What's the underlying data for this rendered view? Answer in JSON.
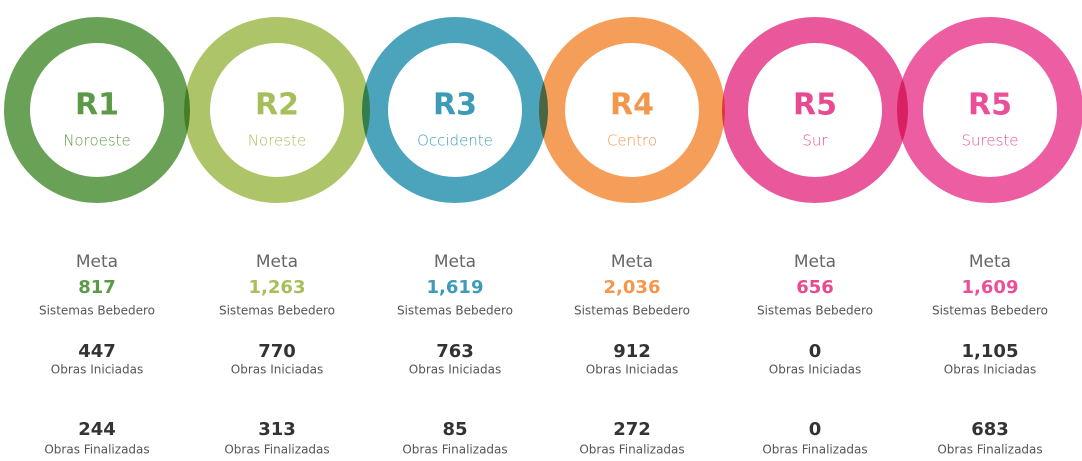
{
  "regions": [
    {
      "code": "R1",
      "name": "Noroeste",
      "goal_label": "Meta",
      "goal": "817",
      "goal_unit": "Sistemas Bebedero",
      "started": "447",
      "started_label": "Obras Iniciadas",
      "finished": "244",
      "finished_label": "Obras Finalizadas"
    },
    {
      "code": "R2",
      "name": "Noreste",
      "goal_label": "Meta",
      "goal": "1,263",
      "goal_unit": "Sistemas Bebedero",
      "started": "770",
      "started_label": "Obras Iniciadas",
      "finished": "313",
      "finished_label": "Obras Finalizadas"
    },
    {
      "code": "R3",
      "name": "Occidente",
      "goal_label": "Meta",
      "goal": "1,619",
      "goal_unit": "Sistemas Bebedero",
      "started": "763",
      "started_label": "Obras Iniciadas",
      "finished": "85",
      "finished_label": "Obras Finalizadas"
    },
    {
      "code": "R4",
      "name": "Centro",
      "goal_label": "Meta",
      "goal": "2,036",
      "goal_unit": "Sistemas Bebedero",
      "started": "912",
      "started_label": "Obras Iniciadas",
      "finished": "272",
      "finished_label": "Obras Finalizadas"
    },
    {
      "code": "R5",
      "name": "Sur",
      "goal_label": "Meta",
      "goal": "656",
      "goal_unit": "Sistemas Bebedero",
      "started": "0",
      "started_label": "Obras Iniciadas",
      "finished": "0",
      "finished_label": "Obras Finalizadas"
    },
    {
      "code": "R5",
      "name": "Sureste",
      "goal_label": "Meta",
      "goal": "1,609",
      "goal_unit": "Sistemas Bebedero",
      "started": "1,105",
      "started_label": "Obras Iniciadas",
      "finished": "683",
      "finished_label": "Obras Finalizadas"
    }
  ]
}
